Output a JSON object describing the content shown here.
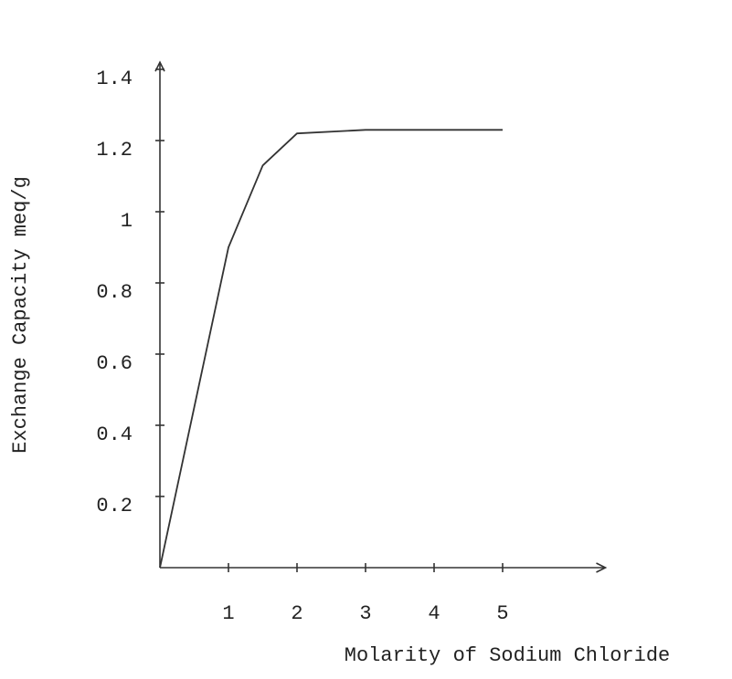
{
  "chart_data": {
    "type": "line",
    "x_label": "Molarity of Sodium Chloride",
    "y_label": "Exchange Capacity meq/g",
    "x": [
      0,
      0.5,
      1,
      1.5,
      2,
      3,
      4,
      5
    ],
    "series": [
      {
        "color": "#333333",
        "values": [
          0,
          0.45,
          0.9,
          1.13,
          1.22,
          1.23,
          1.23,
          1.23
        ]
      }
    ],
    "xlim": [
      0,
      6.5
    ],
    "xticks": [
      1,
      2,
      3,
      4,
      5
    ],
    "ylim": [
      0,
      1.42
    ],
    "yticks": [
      0.2,
      0.4,
      0.6,
      0.8,
      1,
      1.2,
      1.4
    ],
    "grid": false
  }
}
